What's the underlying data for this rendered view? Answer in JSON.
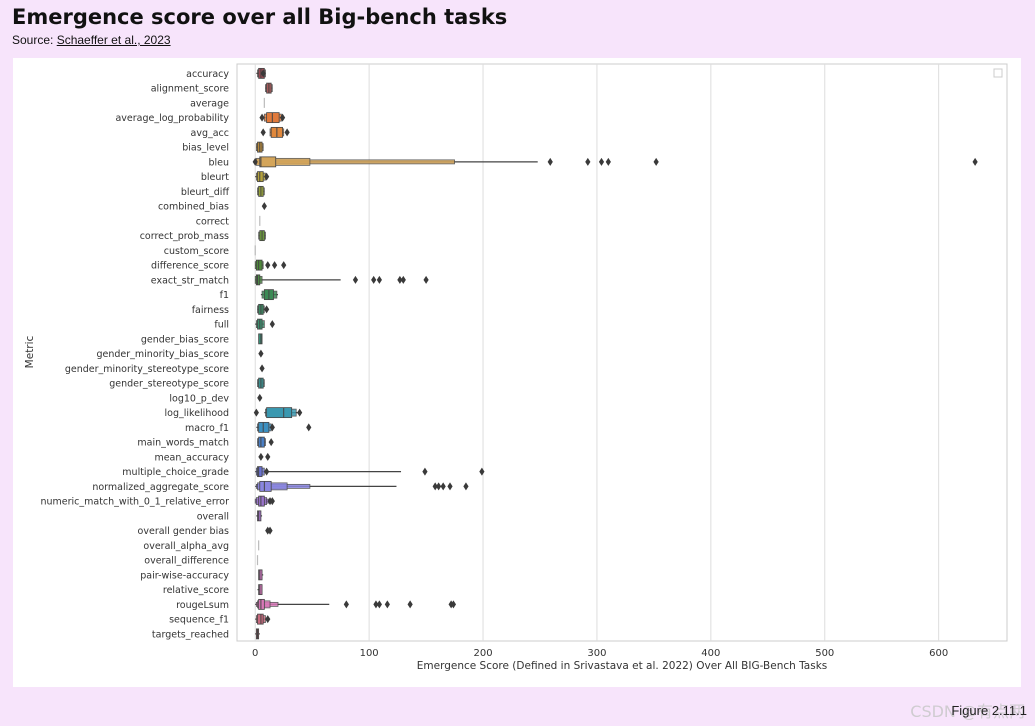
{
  "header": {
    "title": "Emergence score over all Big-bench tasks",
    "source_prefix": "Source: ",
    "source_link": "Schaeffer et al., 2023"
  },
  "footer": {
    "figure_label": "Figure 2.11.1",
    "watermark": "CSDN @有点两"
  },
  "chart_data": {
    "type": "boxen",
    "orientation": "horizontal",
    "xlabel": "Emergence Score (Defined in Srivastava et al. 2022) Over All BIG-Bench Tasks",
    "ylabel": "Metric",
    "xlim": [
      -16,
      660
    ],
    "xticks": [
      0,
      100,
      200,
      300,
      400,
      500,
      600
    ],
    "xtick_labels": [
      "0",
      "100",
      "200",
      "300",
      "400",
      "500",
      "600"
    ],
    "grid": "vertical",
    "legend": "top-right (empty)",
    "series": [
      {
        "name": "accuracy",
        "color": "#9b4b55",
        "boxes": [
          [
            3,
            8
          ],
          [
            2,
            9
          ]
        ],
        "median": 5,
        "whisker": [
          1,
          9
        ],
        "outliers": [
          7
        ]
      },
      {
        "name": "alignment_score",
        "color": "#a85a5a",
        "boxes": [
          [
            10,
            14
          ],
          [
            9,
            15
          ]
        ],
        "median": 12,
        "whisker": [
          9,
          15
        ],
        "outliers": []
      },
      {
        "name": "average",
        "color": "#aaaaaa",
        "boxes": [],
        "median": 8,
        "whisker": [
          8,
          8
        ],
        "outliers": []
      },
      {
        "name": "average_log_probability",
        "color": "#e07a3c",
        "boxes": [
          [
            10,
            21
          ],
          [
            8,
            23
          ]
        ],
        "median": 15,
        "whisker": [
          7,
          23
        ],
        "outliers": [
          6,
          24
        ]
      },
      {
        "name": "avg_acc",
        "color": "#e0883c",
        "boxes": [
          [
            14,
            24
          ],
          [
            13,
            25
          ]
        ],
        "median": 19,
        "whisker": [
          13,
          25
        ],
        "outliers": [
          7,
          28
        ]
      },
      {
        "name": "bias_level",
        "color": "#b8893a",
        "boxes": [
          [
            2,
            6
          ],
          [
            1,
            7
          ]
        ],
        "median": 4,
        "whisker": [
          1,
          7
        ],
        "outliers": []
      },
      {
        "name": "bleu",
        "color": "#d4a55a",
        "boxes": [
          [
            4,
            18
          ],
          [
            1,
            48
          ],
          [
            0,
            175
          ]
        ],
        "median": 5,
        "whisker": [
          0,
          248
        ],
        "outliers": [
          259,
          292,
          304,
          310,
          352,
          632,
          0
        ]
      },
      {
        "name": "bleurt",
        "color": "#b5a23c",
        "boxes": [
          [
            2,
            7
          ],
          [
            1,
            9
          ]
        ],
        "median": 4,
        "whisker": [
          0,
          9
        ],
        "outliers": [
          10
        ]
      },
      {
        "name": "bleurt_diff",
        "color": "#9aa63a",
        "boxes": [
          [
            3,
            7
          ],
          [
            2,
            8
          ]
        ],
        "median": 5,
        "whisker": [
          2,
          8
        ],
        "outliers": []
      },
      {
        "name": "combined_bias",
        "color": "#8fa03c",
        "boxes": [],
        "median": 8,
        "whisker": [
          7,
          9
        ],
        "outliers": [
          8
        ]
      },
      {
        "name": "correct",
        "color": "#aaaaaa",
        "boxes": [],
        "median": 4,
        "whisker": [
          4,
          4
        ],
        "outliers": []
      },
      {
        "name": "correct_prob_mass",
        "color": "#6e9e3c",
        "boxes": [
          [
            4,
            8
          ],
          [
            3,
            9
          ]
        ],
        "median": 6,
        "whisker": [
          3,
          9
        ],
        "outliers": []
      },
      {
        "name": "custom_score",
        "color": "#aaaaaa",
        "boxes": [],
        "median": 0,
        "whisker": [
          0,
          0
        ],
        "outliers": []
      },
      {
        "name": "difference_score",
        "color": "#4e8a3a",
        "boxes": [
          [
            1,
            6
          ],
          [
            0,
            7
          ]
        ],
        "median": 3,
        "whisker": [
          0,
          7
        ],
        "outliers": [
          11,
          17,
          25
        ]
      },
      {
        "name": "exact_str_match",
        "color": "#4c8a44",
        "boxes": [
          [
            1,
            4
          ],
          [
            0,
            6
          ]
        ],
        "median": 2,
        "whisker": [
          0,
          75
        ],
        "outliers": [
          88,
          104,
          109,
          127,
          130,
          150
        ]
      },
      {
        "name": "f1",
        "color": "#3c8a55",
        "boxes": [
          [
            8,
            16
          ],
          [
            6,
            19
          ]
        ],
        "median": 12,
        "whisker": [
          5,
          20
        ],
        "outliers": []
      },
      {
        "name": "fairness",
        "color": "#3c8a63",
        "boxes": [
          [
            3,
            7
          ],
          [
            2,
            8
          ]
        ],
        "median": 5,
        "whisker": [
          2,
          8
        ],
        "outliers": [
          10
        ]
      },
      {
        "name": "full",
        "color": "#3d8f6e",
        "boxes": [
          [
            2,
            6
          ],
          [
            1,
            8
          ]
        ],
        "median": 4,
        "whisker": [
          0,
          8
        ],
        "outliers": [
          15
        ]
      },
      {
        "name": "gender_bias_score",
        "color": "#3a9078",
        "boxes": [
          [
            3,
            6
          ]
        ],
        "median": 5,
        "whisker": [
          3,
          6
        ],
        "outliers": []
      },
      {
        "name": "gender_minority_bias_score",
        "color": "#3a9080",
        "boxes": [],
        "median": 5,
        "whisker": [
          4,
          6
        ],
        "outliers": [
          5
        ]
      },
      {
        "name": "gender_minority_stereotype_score",
        "color": "#3a928a",
        "boxes": [],
        "median": 6,
        "whisker": [
          5,
          7
        ],
        "outliers": [
          6
        ]
      },
      {
        "name": "gender_stereotype_score",
        "color": "#3b9392",
        "boxes": [
          [
            3,
            7
          ],
          [
            2,
            8
          ]
        ],
        "median": 5,
        "whisker": [
          2,
          8
        ],
        "outliers": []
      },
      {
        "name": "log10_p_dev",
        "color": "#3b9499",
        "boxes": [],
        "median": 4,
        "whisker": [
          3,
          5
        ],
        "outliers": [
          4
        ]
      },
      {
        "name": "log_likelihood",
        "color": "#3a98b0",
        "boxes": [
          [
            10,
            32
          ],
          [
            9,
            36
          ]
        ],
        "median": 25,
        "whisker": [
          8,
          37
        ],
        "outliers": [
          1,
          39
        ]
      },
      {
        "name": "macro_f1",
        "color": "#3b8fc0",
        "boxes": [
          [
            3,
            12
          ],
          [
            2,
            14
          ]
        ],
        "median": 7,
        "whisker": [
          1,
          14
        ],
        "outliers": [
          15,
          47
        ]
      },
      {
        "name": "main_words_match",
        "color": "#4a80c8",
        "boxes": [
          [
            3,
            8
          ],
          [
            2,
            9
          ]
        ],
        "median": 5,
        "whisker": [
          2,
          9
        ],
        "outliers": [
          14
        ]
      },
      {
        "name": "mean_accuracy",
        "color": "#5a78cc",
        "boxes": [],
        "median": 5,
        "whisker": [
          4,
          7
        ],
        "outliers": [
          5,
          11
        ]
      },
      {
        "name": "multiple_choice_grade",
        "color": "#6a72d0",
        "boxes": [
          [
            2,
            6
          ],
          [
            1,
            8
          ]
        ],
        "median": 3,
        "whisker": [
          0,
          128
        ],
        "outliers": [
          10,
          149,
          199
        ]
      },
      {
        "name": "normalized_aggregate_score",
        "color": "#8a86e0",
        "boxes": [
          [
            4,
            14
          ],
          [
            2,
            28
          ],
          [
            1,
            48
          ]
        ],
        "median": 8,
        "whisker": [
          0,
          124
        ],
        "outliers": [
          158,
          161,
          165,
          171,
          185
        ]
      },
      {
        "name": "numeric_match_with_0_1_relative_error",
        "color": "#9a74cc",
        "boxes": [
          [
            3,
            8
          ],
          [
            1,
            10
          ],
          [
            0,
            12
          ]
        ],
        "median": 5,
        "whisker": [
          0,
          14
        ],
        "outliers": [
          13,
          15
        ]
      },
      {
        "name": "overall",
        "color": "#a070c4",
        "boxes": [
          [
            2,
            5
          ]
        ],
        "median": 3,
        "whisker": [
          1,
          6
        ],
        "outliers": []
      },
      {
        "name": "overall gender bias",
        "color": "#b070c0",
        "boxes": [],
        "median": 12,
        "whisker": [
          11,
          13
        ],
        "outliers": [
          11,
          13
        ]
      },
      {
        "name": "overall_alpha_avg",
        "color": "#aaaaaa",
        "boxes": [],
        "median": 3,
        "whisker": [
          3,
          3
        ],
        "outliers": []
      },
      {
        "name": "overall_difference",
        "color": "#aaaaaa",
        "boxes": [],
        "median": 2,
        "whisker": [
          2,
          2
        ],
        "outliers": []
      },
      {
        "name": "pair-wise-accuracy",
        "color": "#c070b4",
        "boxes": [
          [
            3,
            6
          ]
        ],
        "median": 4,
        "whisker": [
          3,
          7
        ],
        "outliers": []
      },
      {
        "name": "relative_score",
        "color": "#c872b0",
        "boxes": [
          [
            3,
            6
          ]
        ],
        "median": 4,
        "whisker": [
          2,
          6
        ],
        "outliers": []
      },
      {
        "name": "rougeLsum",
        "color": "#d878b8",
        "boxes": [
          [
            3,
            8
          ],
          [
            2,
            13
          ],
          [
            1,
            20
          ]
        ],
        "median": 5,
        "whisker": [
          0,
          65
        ],
        "outliers": [
          80,
          106,
          109,
          116,
          136,
          172,
          174
        ]
      },
      {
        "name": "sequence_f1",
        "color": "#c86a7e",
        "boxes": [
          [
            2,
            7
          ],
          [
            1,
            9
          ]
        ],
        "median": 5,
        "whisker": [
          0,
          9
        ],
        "outliers": [
          11
        ]
      },
      {
        "name": "targets_reached",
        "color": "#a8606a",
        "boxes": [
          [
            1,
            3
          ]
        ],
        "median": 2,
        "whisker": [
          0,
          4
        ],
        "outliers": []
      }
    ]
  }
}
